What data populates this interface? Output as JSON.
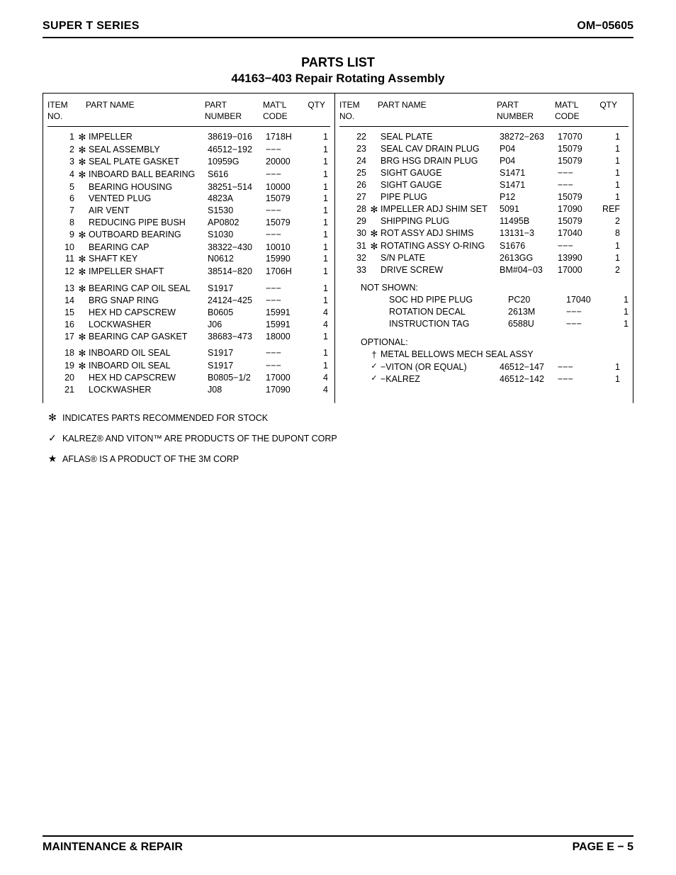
{
  "header": {
    "series": "SUPER T SERIES",
    "doc_code": "OM−05605"
  },
  "title": {
    "line1": "PARTS LIST",
    "line2": "44163−403 Repair Rotating Assembly"
  },
  "columns": {
    "item_no": "ITEM NO.",
    "part_name": "PART NAME",
    "part_number": "PART NUMBER",
    "matl_code": "MAT'L CODE",
    "qty": "QTY"
  },
  "left_rows": [
    {
      "no": "1",
      "star": "✻",
      "name": "IMPELLER",
      "num": "38619−016",
      "matl": "1718H",
      "qty": "1"
    },
    {
      "no": "2",
      "star": "✻",
      "name": "SEAL ASSEMBLY",
      "num": "46512−192",
      "matl": "−−−",
      "qty": "1"
    },
    {
      "no": "3",
      "star": "✻",
      "name": "SEAL PLATE GASKET",
      "num": "10959G",
      "matl": "20000",
      "qty": "1"
    },
    {
      "no": "4",
      "star": "✻",
      "name": "INBOARD BALL BEARING",
      "num": "S616",
      "matl": "−−−",
      "qty": "1"
    },
    {
      "no": "5",
      "star": "",
      "name": "BEARING HOUSING",
      "num": "38251−514",
      "matl": "10000",
      "qty": "1"
    },
    {
      "no": "6",
      "star": "",
      "name": "VENTED PLUG",
      "num": "4823A",
      "matl": "15079",
      "qty": "1"
    },
    {
      "no": "7",
      "star": "",
      "name": "AIR VENT",
      "num": "S1530",
      "matl": "−−−",
      "qty": "1"
    },
    {
      "no": "8",
      "star": "",
      "name": "REDUCING PIPE BUSH",
      "num": "AP0802",
      "matl": "15079",
      "qty": "1"
    },
    {
      "no": "9",
      "star": "✻",
      "name": "OUTBOARD BEARING",
      "num": "S1030",
      "matl": "−−−",
      "qty": "1"
    },
    {
      "no": "10",
      "star": "",
      "name": "BEARING CAP",
      "num": "38322−430",
      "matl": "10010",
      "qty": "1"
    },
    {
      "no": "11",
      "star": "✻",
      "name": "SHAFT KEY",
      "num": "N0612",
      "matl": "15990",
      "qty": "1"
    },
    {
      "no": "12",
      "star": "✻",
      "name": "IMPELLER SHAFT",
      "num": "38514−820",
      "matl": "1706H",
      "qty": "1"
    },
    {
      "spacer": true
    },
    {
      "no": "13",
      "star": "✻",
      "name": "BEARING CAP OIL SEAL",
      "num": "S1917",
      "matl": "−−−",
      "qty": "1"
    },
    {
      "no": "14",
      "star": "",
      "name": "BRG SNAP RING",
      "num": "24124−425",
      "matl": "−−−",
      "qty": "1"
    },
    {
      "no": "15",
      "star": "",
      "name": "HEX HD CAPSCREW",
      "num": "B0605",
      "matl": "15991",
      "qty": "4"
    },
    {
      "no": "16",
      "star": "",
      "name": "LOCKWASHER",
      "num": "J06",
      "matl": "15991",
      "qty": "4"
    },
    {
      "no": "17",
      "star": "✻",
      "name": "BEARING CAP GASKET",
      "num": "38683−473",
      "matl": "18000",
      "qty": "1"
    },
    {
      "spacer": true
    },
    {
      "no": "18",
      "star": "✻",
      "name": "INBOARD OIL SEAL",
      "num": "S1917",
      "matl": "−−−",
      "qty": "1"
    },
    {
      "no": "19",
      "star": "✻",
      "name": "INBOARD OIL SEAL",
      "num": "S1917",
      "matl": "−−−",
      "qty": "1"
    },
    {
      "no": "20",
      "star": "",
      "name": "HEX HD CAPSCREW",
      "num": "B0805−1/2",
      "matl": "17000",
      "qty": "4"
    },
    {
      "no": "21",
      "star": "",
      "name": "LOCKWASHER",
      "num": "J08",
      "matl": "17090",
      "qty": "4"
    }
  ],
  "right_rows": [
    {
      "no": "22",
      "star": "",
      "name": "SEAL PLATE",
      "num": "38272−263",
      "matl": "17070",
      "qty": "1"
    },
    {
      "no": "23",
      "star": "",
      "name": "SEAL CAV DRAIN PLUG",
      "num": "P04",
      "matl": "15079",
      "qty": "1"
    },
    {
      "no": "24",
      "star": "",
      "name": "BRG HSG DRAIN PLUG",
      "num": "P04",
      "matl": "15079",
      "qty": "1"
    },
    {
      "no": "25",
      "star": "",
      "name": "SIGHT GAUGE",
      "num": "S1471",
      "matl": "−−−",
      "qty": "1"
    },
    {
      "no": "26",
      "star": "",
      "name": "SIGHT GAUGE",
      "num": "S1471",
      "matl": "−−−",
      "qty": "1"
    },
    {
      "no": "27",
      "star": "",
      "name": "PIPE PLUG",
      "num": "P12",
      "matl": "15079",
      "qty": "1"
    },
    {
      "no": "28",
      "star": "✻",
      "name": "IMPELLER ADJ SHIM SET",
      "num": "5091",
      "matl": "17090",
      "qty": "REF"
    },
    {
      "no": "29",
      "star": "",
      "name": "SHIPPING PLUG",
      "num": "11495B",
      "matl": "15079",
      "qty": "2"
    },
    {
      "no": "30",
      "star": "✻",
      "name": "ROT ASSY ADJ SHIMS",
      "num": "13131−3",
      "matl": "17040",
      "qty": "8"
    },
    {
      "no": "31",
      "star": "✻",
      "name": "ROTATING ASSY O-RING",
      "num": "S1676",
      "matl": "−−−",
      "qty": "1"
    },
    {
      "no": "32",
      "star": "",
      "name": "S/N PLATE",
      "num": "2613GG",
      "matl": "13990",
      "qty": "1"
    },
    {
      "no": "33",
      "star": "",
      "name": "DRIVE SCREW",
      "num": "BM#04−03",
      "matl": "17000",
      "qty": "2"
    }
  ],
  "not_shown_label": "NOT SHOWN:",
  "not_shown": [
    {
      "name": "SOC HD PIPE PLUG",
      "num": "PC20",
      "matl": "17040",
      "qty": "1"
    },
    {
      "name": "ROTATION DECAL",
      "num": "2613M",
      "matl": "−−−",
      "qty": "1"
    },
    {
      "name": "INSTRUCTION TAG",
      "num": "6588U",
      "matl": "−−−",
      "qty": "1"
    }
  ],
  "optional_label": "OPTIONAL:",
  "optional_header": {
    "sym": "†",
    "text": "METAL BELLOWS MECH SEAL ASSY"
  },
  "optional": [
    {
      "sym": "✓",
      "name": "−VITON (OR EQUAL)",
      "num": "46512−147",
      "matl": "−−−",
      "qty": "1"
    },
    {
      "sym": "✓",
      "name": "−KALREZ",
      "num": "46512−142",
      "matl": "−−−",
      "qty": "1"
    }
  ],
  "notes": [
    {
      "sym": "✻",
      "text": "INDICATES PARTS RECOMMENDED FOR STOCK"
    },
    {
      "sym": "✓",
      "text": "KALREZ® AND VITON™ ARE PRODUCTS OF THE DUPONT CORP"
    },
    {
      "sym": "★",
      "text": "AFLAS® IS A PRODUCT OF THE 3M CORP"
    }
  ],
  "footer": {
    "left": "MAINTENANCE & REPAIR",
    "right": "PAGE E − 5"
  }
}
